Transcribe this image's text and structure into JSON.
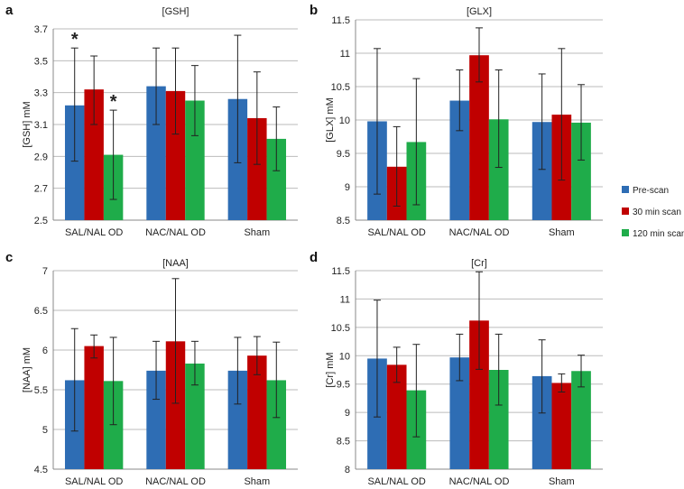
{
  "chart_data": [
    {
      "type": "bar",
      "panel": "a",
      "title": "[GSH]",
      "ylabel": "[GSH] mM",
      "xlabel": "",
      "ylim": [
        2.5,
        3.7
      ],
      "yticks": [
        2.5,
        2.7,
        2.9,
        3.1,
        3.3,
        3.5,
        3.7
      ],
      "ytick_labels": [
        "2.5",
        "2.7",
        "2.9",
        "3.1",
        "3.3",
        "3.5",
        "3.7"
      ],
      "categories": [
        "SAL/NAL OD",
        "NAC/NAL OD",
        "Sham"
      ],
      "series": [
        {
          "name": "Pre-scan",
          "values": [
            3.22,
            3.34,
            3.26
          ],
          "err_low": [
            2.87,
            3.1,
            2.86
          ],
          "err_high": [
            3.58,
            3.58,
            3.66
          ]
        },
        {
          "name": "30 min scan",
          "values": [
            3.32,
            3.31,
            3.14
          ],
          "err_low": [
            3.1,
            3.04,
            2.85
          ],
          "err_high": [
            3.53,
            3.58,
            3.43
          ]
        },
        {
          "name": "120 min scan",
          "values": [
            2.91,
            3.25,
            3.01
          ],
          "err_low": [
            2.63,
            3.03,
            2.81
          ],
          "err_high": [
            3.19,
            3.47,
            3.21
          ]
        }
      ],
      "annotations": [
        {
          "text": "*",
          "series": 0,
          "category": 0
        },
        {
          "text": "*",
          "series": 2,
          "category": 0
        }
      ],
      "grid": true
    },
    {
      "type": "bar",
      "panel": "b",
      "title": "[GLX]",
      "ylabel": "[GLX] mM",
      "xlabel": "",
      "ylim": [
        8.5,
        11.5
      ],
      "yticks": [
        8.5,
        9,
        9.5,
        10,
        10.5,
        11,
        11.5
      ],
      "ytick_labels": [
        "8.5",
        "9",
        "9.5",
        "10",
        "10.5",
        "11",
        "11.5"
      ],
      "categories": [
        "SAL/NAL OD",
        "NAC/NAL OD",
        "Sham"
      ],
      "series": [
        {
          "name": "Pre-scan",
          "values": [
            9.98,
            10.29,
            9.97
          ],
          "err_low": [
            8.89,
            9.84,
            9.26
          ],
          "err_high": [
            11.07,
            10.75,
            10.69
          ]
        },
        {
          "name": "30 min scan",
          "values": [
            9.3,
            10.97,
            10.08
          ],
          "err_low": [
            8.71,
            10.57,
            9.1
          ],
          "err_high": [
            9.9,
            11.38,
            11.07
          ]
        },
        {
          "name": "120 min scan",
          "values": [
            9.67,
            10.01,
            9.96
          ],
          "err_low": [
            8.73,
            9.29,
            9.4
          ],
          "err_high": [
            10.62,
            10.75,
            10.53
          ]
        }
      ],
      "annotations": [],
      "grid": true
    },
    {
      "type": "bar",
      "panel": "c",
      "title": "[NAA]",
      "ylabel": "[NAA] mM",
      "xlabel": "",
      "ylim": [
        4.5,
        7
      ],
      "yticks": [
        4.5,
        5,
        5.5,
        6,
        6.5,
        7
      ],
      "ytick_labels": [
        "4.5",
        "5",
        "5.5",
        "6",
        "6.5",
        "7"
      ],
      "categories": [
        "SAL/NAL OD",
        "NAC/NAL OD",
        "Sham"
      ],
      "series": [
        {
          "name": "Pre-scan",
          "values": [
            5.62,
            5.74,
            5.74
          ],
          "err_low": [
            4.98,
            5.38,
            5.32
          ],
          "err_high": [
            6.27,
            6.11,
            6.16
          ]
        },
        {
          "name": "30 min scan",
          "values": [
            6.05,
            6.11,
            5.93
          ],
          "err_low": [
            5.9,
            5.33,
            5.69
          ],
          "err_high": [
            6.19,
            6.9,
            6.17
          ]
        },
        {
          "name": "120 min scan",
          "values": [
            5.61,
            5.83,
            5.62
          ],
          "err_low": [
            5.06,
            5.56,
            5.15
          ],
          "err_high": [
            6.16,
            6.11,
            6.1
          ]
        }
      ],
      "annotations": [],
      "grid": true
    },
    {
      "type": "bar",
      "panel": "d",
      "title": "[Cr]",
      "ylabel": "[Cr] mM",
      "xlabel": "",
      "ylim": [
        8,
        11.5
      ],
      "yticks": [
        8,
        8.5,
        9,
        9.5,
        10,
        10.5,
        11,
        11.5
      ],
      "ytick_labels": [
        "8",
        "8.5",
        "9",
        "9.5",
        "10",
        "10.5",
        "11",
        "11.5"
      ],
      "categories": [
        "SAL/NAL OD",
        "NAC/NAL OD",
        "Sham"
      ],
      "series": [
        {
          "name": "Pre-scan",
          "values": [
            9.95,
            9.97,
            9.64
          ],
          "err_low": [
            8.92,
            9.56,
            8.99
          ],
          "err_high": [
            10.98,
            10.38,
            10.28
          ]
        },
        {
          "name": "30 min scan",
          "values": [
            9.84,
            10.62,
            9.52
          ],
          "err_low": [
            9.53,
            9.76,
            9.36
          ],
          "err_high": [
            10.15,
            11.48,
            9.68
          ]
        },
        {
          "name": "120 min scan",
          "values": [
            9.39,
            9.75,
            9.73
          ],
          "err_low": [
            8.57,
            9.13,
            9.45
          ],
          "err_high": [
            10.2,
            10.38,
            10.01
          ]
        }
      ],
      "annotations": [],
      "grid": true
    }
  ],
  "legend": {
    "placement": "right-middle",
    "items": [
      {
        "label": "Pre-scan",
        "color": "#2e6db4"
      },
      {
        "label": "30 min scan",
        "color": "#c00000"
      },
      {
        "label": "120 min scan",
        "color": "#1fac4a"
      }
    ]
  },
  "colors": {
    "series": [
      "#2e6db4",
      "#c00000",
      "#1fac4a"
    ],
    "grid": "#bbbbbb",
    "axis": "#888888",
    "errorbar": "#222222"
  }
}
